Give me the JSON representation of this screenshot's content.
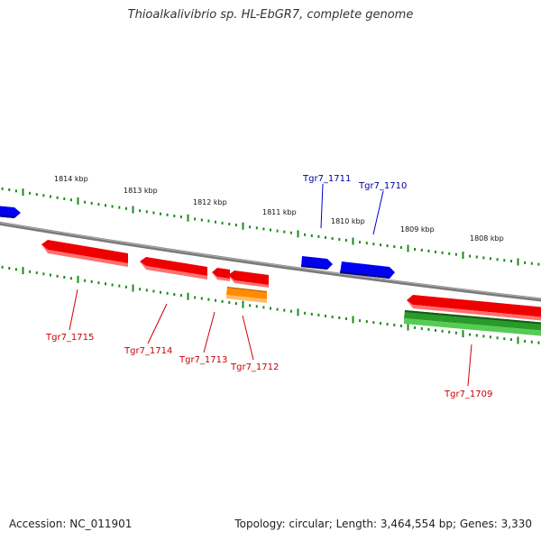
{
  "title": "Thioalkalivibrio sp. HL-EbGR7, complete genome",
  "footer": {
    "accession": "Accession: NC_011901",
    "summary": "Topology: circular; Length: 3,464,554 bp; Genes: 3,330"
  },
  "colors": {
    "backbone": "#808080",
    "forward_gene": "#0000ee",
    "reverse_gene": "#ee0000",
    "orange_gene": "#ff8c00",
    "green_gene": "#2aa02a",
    "tick": "#1a8a1a",
    "forward_label": "#000099",
    "reverse_label": "#cc0000"
  },
  "scale_labels": [
    "1814 kbp",
    "1813 kbp",
    "1812 kbp",
    "1811 kbp",
    "1810 kbp",
    "1809 kbp",
    "1808 kbp"
  ],
  "gene_labels": {
    "forward": [
      "Tgr7_1711",
      "Tgr7_1710"
    ],
    "reverse": [
      "Tgr7_1715",
      "Tgr7_1714",
      "Tgr7_1713",
      "Tgr7_1712",
      "Tgr7_1709"
    ]
  }
}
